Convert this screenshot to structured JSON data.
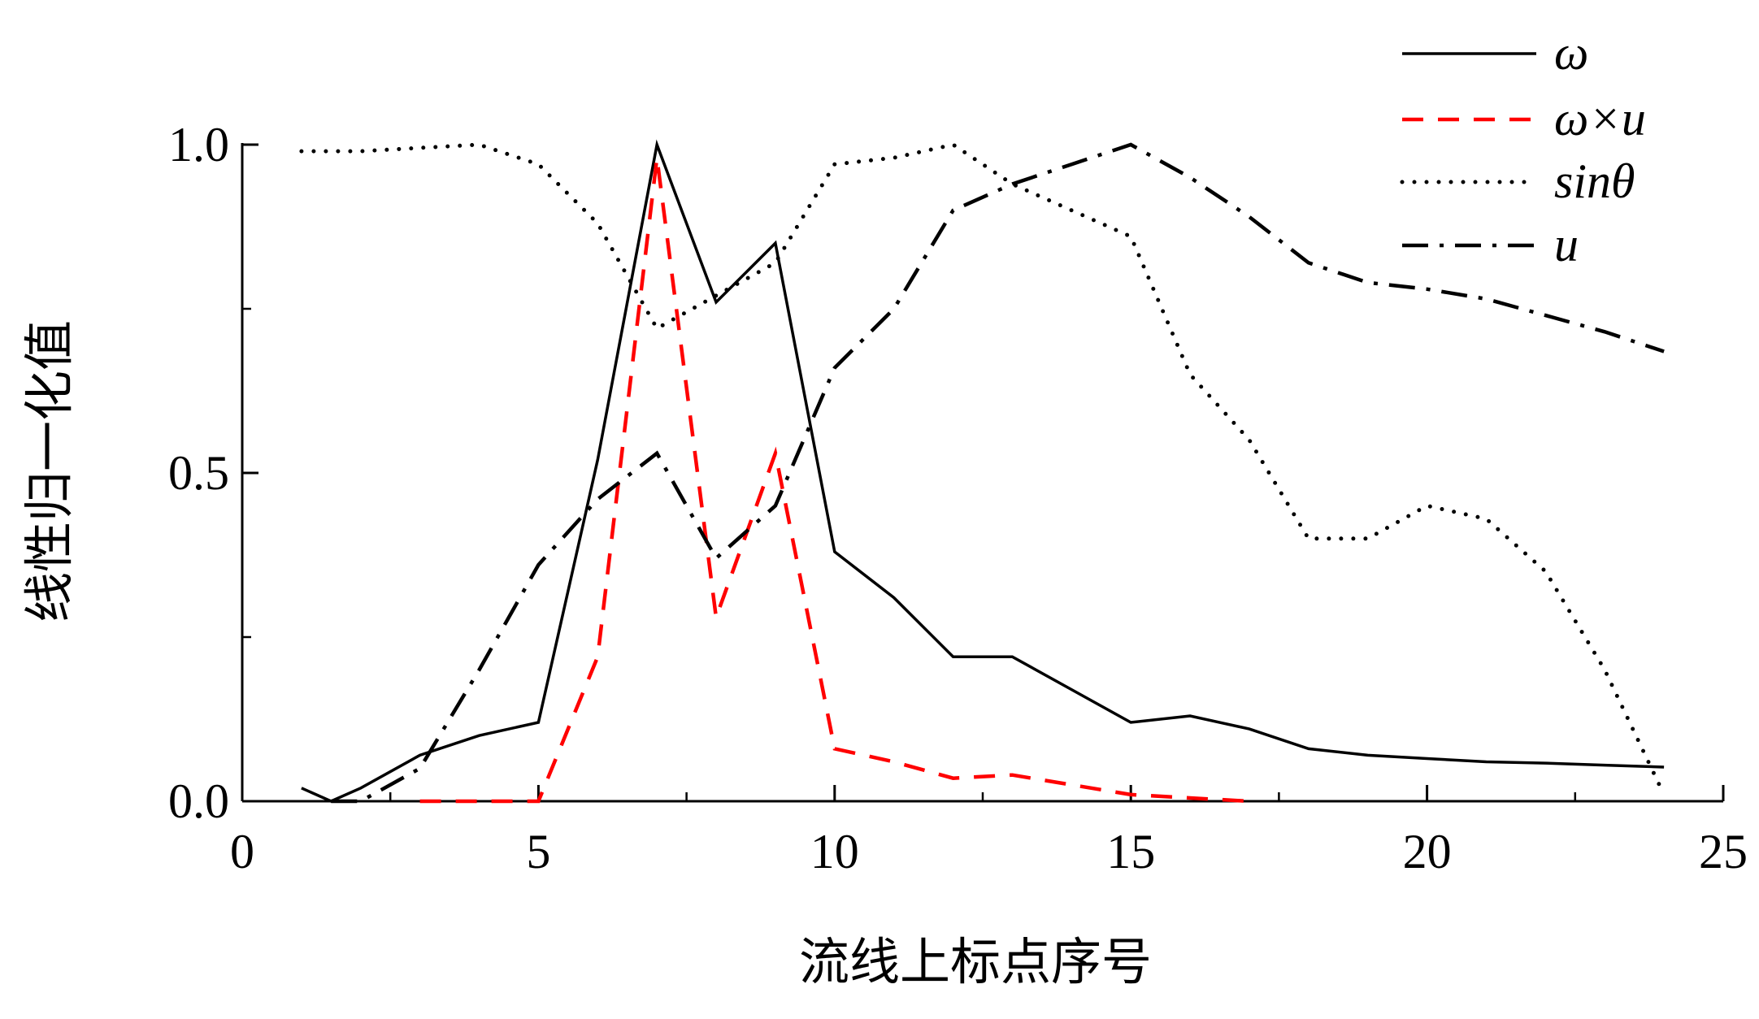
{
  "chart_data": {
    "type": "line",
    "title": "",
    "xlabel": "流线上标点序号",
    "ylabel": "线性归一化值",
    "xlim": [
      0,
      25
    ],
    "ylim": [
      0,
      1.0
    ],
    "xticks": [
      0,
      5,
      10,
      15,
      20,
      25
    ],
    "xtick_labels": [
      "0",
      "5",
      "10",
      "15",
      "20",
      "25"
    ],
    "yticks": [
      0,
      0.5,
      1.0
    ],
    "ytick_labels": [
      "0.0",
      "0.5",
      "1.0"
    ],
    "grid": false,
    "legend_position": "top-right",
    "series": [
      {
        "name": "ω",
        "color": "#000000",
        "style": "solid",
        "x": [
          1,
          1.5,
          2,
          3,
          4,
          5,
          6,
          7,
          8,
          9,
          10,
          11,
          12,
          13,
          14,
          15,
          16,
          17,
          18,
          19,
          20,
          21,
          22,
          23,
          24
        ],
        "y": [
          0.02,
          0.0,
          0.02,
          0.07,
          0.1,
          0.12,
          0.52,
          1.0,
          0.76,
          0.85,
          0.38,
          0.31,
          0.22,
          0.22,
          0.17,
          0.12,
          0.13,
          0.11,
          0.08,
          0.07,
          0.065,
          0.06,
          0.058,
          0.055,
          0.052
        ]
      },
      {
        "name": "ω×u",
        "color": "#ff0000",
        "style": "dashed",
        "x": [
          3,
          4,
          5,
          6,
          7,
          8,
          9,
          10,
          11,
          12,
          13,
          14,
          15,
          16,
          17
        ],
        "y": [
          0.0,
          0.0,
          0.0,
          0.22,
          0.98,
          0.28,
          0.53,
          0.08,
          0.06,
          0.035,
          0.04,
          0.025,
          0.01,
          0.005,
          0.0
        ]
      },
      {
        "name": "sinθ",
        "color": "#000000",
        "style": "dotted",
        "x": [
          1,
          2,
          3,
          4,
          5,
          6,
          7,
          8,
          9,
          10,
          11,
          12,
          13,
          14,
          15,
          16,
          17,
          18,
          19,
          20,
          21,
          22,
          23,
          24
        ],
        "y": [
          0.99,
          0.99,
          0.995,
          1.0,
          0.97,
          0.88,
          0.72,
          0.77,
          0.82,
          0.97,
          0.98,
          1.0,
          0.94,
          0.9,
          0.86,
          0.65,
          0.55,
          0.4,
          0.4,
          0.45,
          0.43,
          0.35,
          0.2,
          0.01
        ]
      },
      {
        "name": "u",
        "color": "#000000",
        "style": "dashdot",
        "x": [
          1.5,
          2,
          3,
          4,
          5,
          6,
          7,
          8,
          9,
          10,
          11,
          12,
          13,
          14,
          15,
          16,
          17,
          18,
          19,
          20,
          21,
          22,
          23,
          24
        ],
        "y": [
          0.0,
          0.0,
          0.05,
          0.2,
          0.36,
          0.46,
          0.53,
          0.37,
          0.45,
          0.66,
          0.75,
          0.9,
          0.94,
          0.97,
          1.0,
          0.95,
          0.89,
          0.82,
          0.79,
          0.78,
          0.765,
          0.74,
          0.715,
          0.685
        ]
      }
    ]
  }
}
